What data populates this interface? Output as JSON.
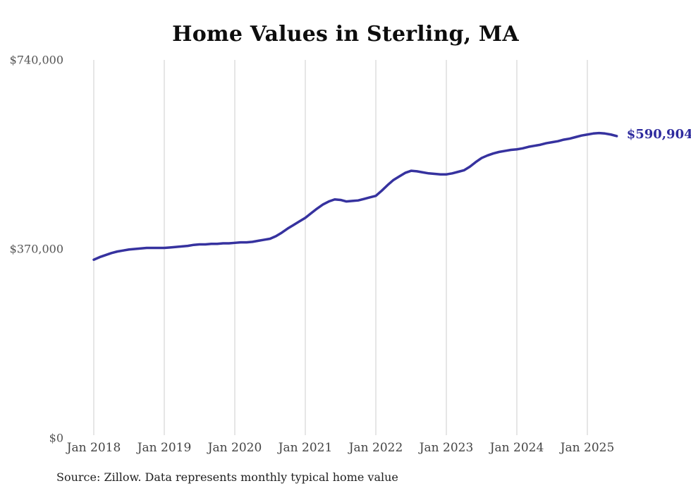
{
  "title": "Home Values in Sterling, MA",
  "source_note": "Source: Zillow. Data represents monthly typical home value",
  "colors": {
    "line": "#36329f",
    "end_label": "#2e2b9e",
    "gridline": "#cccccc",
    "axis_text": "#555555",
    "title_text": "#0d0d0d"
  },
  "chart_data": {
    "type": "line",
    "title": "Home Values in Sterling, MA",
    "xlabel": "",
    "ylabel": "",
    "frequency": "monthly",
    "start_month": "2018-01",
    "end_month": "2025-06",
    "ylim": [
      0,
      740000
    ],
    "grid": "vertical-only",
    "legend_position": "none",
    "end_label": "$590,904",
    "latest_value": 590904,
    "y_ticks": [
      {
        "label": "$0",
        "value": 0
      },
      {
        "label": "$370,000",
        "value": 370000
      },
      {
        "label": "$740,000",
        "value": 740000
      }
    ],
    "x_ticks": [
      {
        "label": "Jan 2018",
        "month_index": 0
      },
      {
        "label": "Jan 2019",
        "month_index": 12
      },
      {
        "label": "Jan 2020",
        "month_index": 24
      },
      {
        "label": "Jan 2021",
        "month_index": 36
      },
      {
        "label": "Jan 2022",
        "month_index": 48
      },
      {
        "label": "Jan 2023",
        "month_index": 60
      },
      {
        "label": "Jan 2024",
        "month_index": 72
      },
      {
        "label": "Jan 2025",
        "month_index": 84
      }
    ],
    "values": [
      349000,
      354000,
      358000,
      362000,
      365000,
      367000,
      369000,
      370000,
      371000,
      372000,
      372000,
      372000,
      372000,
      373000,
      374000,
      375000,
      376000,
      378000,
      379000,
      379000,
      380000,
      380000,
      381000,
      381000,
      382000,
      383000,
      383000,
      384000,
      386000,
      388000,
      390000,
      395000,
      402000,
      410000,
      417000,
      424000,
      431000,
      440000,
      449000,
      457000,
      463000,
      467000,
      466000,
      463000,
      464000,
      465000,
      468000,
      471000,
      474000,
      484000,
      495000,
      505000,
      512000,
      519000,
      523000,
      522000,
      520000,
      518000,
      517000,
      516000,
      516000,
      518000,
      521000,
      524000,
      531000,
      540000,
      548000,
      553000,
      557000,
      560000,
      562000,
      564000,
      565000,
      567000,
      570000,
      572000,
      574000,
      577000,
      579000,
      581000,
      584000,
      586000,
      589000,
      592000,
      594000,
      596000,
      597000,
      596000,
      594000,
      590904
    ]
  }
}
